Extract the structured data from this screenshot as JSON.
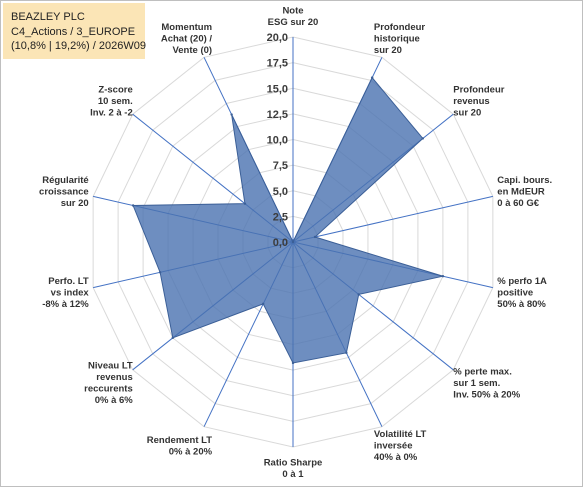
{
  "header": {
    "line1": "BEAZLEY PLC",
    "line2": "C4_Actions / 3_EUROPE",
    "line3": "(10,8% | 19,2%) / 2026W09"
  },
  "colors": {
    "fill": "#4a72b0",
    "fill_opacity": 0.8,
    "spokes": "#4472c4",
    "rings": "#d9d9d9",
    "title_bg": "#fbe5b6"
  },
  "chart_data": {
    "type": "radar",
    "rlim": [
      0,
      20
    ],
    "ticks": [
      "0,0",
      "2,5",
      "5,0",
      "7,5",
      "10,0",
      "12,5",
      "15,0",
      "17,5",
      "20,0"
    ],
    "axes": [
      {
        "label": [
          "Note",
          "ESG sur 20"
        ],
        "value": 0
      },
      {
        "label": [
          "Profondeur",
          "historique",
          "sur 20"
        ],
        "value": 17.8
      },
      {
        "label": [
          "Profondeur",
          "revenus",
          "sur 20"
        ],
        "value": 16.2
      },
      {
        "label": [
          "Capi. bours.",
          "en MdEUR",
          "0 à 60 G€"
        ],
        "value": 2.2
      },
      {
        "label": [
          "% perfo 1A",
          "positive",
          "50% à 80%"
        ],
        "value": 15.0
      },
      {
        "label": [
          "% perte max.",
          "sur 1 sem.",
          "Inv. 50% à 20%"
        ],
        "value": 8.2
      },
      {
        "label": [
          "Volatilité LT",
          "inversée",
          "40% à 0%"
        ],
        "value": 12.0
      },
      {
        "label": [
          "Ratio Sharpe",
          "0 à 1"
        ],
        "value": 11.8
      },
      {
        "label": [
          "Rendement LT",
          "0% à 20%"
        ],
        "value": 6.7
      },
      {
        "label": [
          "Niveau LT",
          "revenus",
          "reccurents",
          "0% à 6%"
        ],
        "value": 15.0
      },
      {
        "label": [
          "Perfo. LT",
          "vs index",
          "-8% à 12%"
        ],
        "value": 13.3
      },
      {
        "label": [
          "Régularité",
          "croissance",
          "sur 20"
        ],
        "value": 16.0
      },
      {
        "label": [
          "Z-score",
          "10 sem.",
          "Inv. 2 à -2"
        ],
        "value": 6.0
      },
      {
        "label": [
          "Momentum",
          "Achat (20) /",
          "Vente (0)"
        ],
        "value": 13.8
      }
    ]
  }
}
